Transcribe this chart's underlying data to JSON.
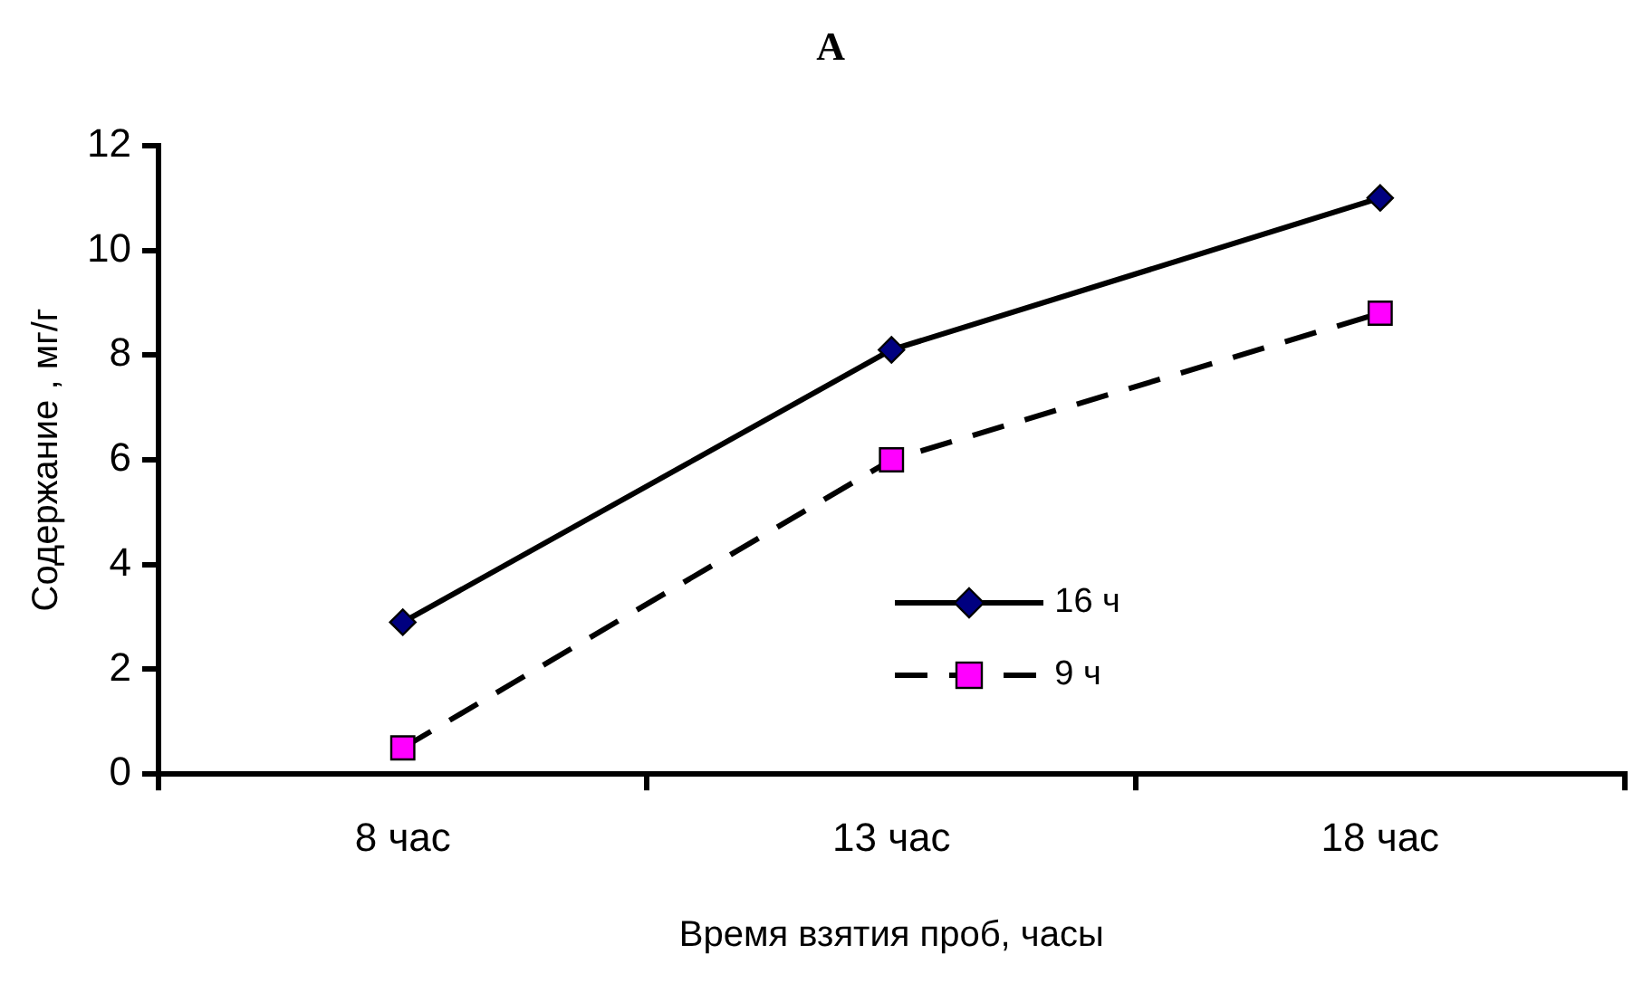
{
  "chart_data": {
    "type": "line",
    "title": "A",
    "xlabel": "Время взятия проб, часы",
    "ylabel": "Содержание , мг/г",
    "categories": [
      "8 час",
      "13 час",
      "18 час"
    ],
    "series": [
      {
        "name": "16 ч",
        "color": "#000080",
        "values": [
          2.9,
          8.1,
          11.0
        ],
        "marker": "diamond",
        "line_style": "solid"
      },
      {
        "name": "9 ч",
        "color": "#ff00ff",
        "values": [
          0.5,
          6.0,
          8.8
        ],
        "marker": "square",
        "line_style": "dashed"
      }
    ],
    "ylim": [
      0,
      12
    ],
    "yticks": [
      0,
      2,
      4,
      6,
      8,
      10,
      12
    ],
    "grid": false,
    "legend": "bottom"
  }
}
